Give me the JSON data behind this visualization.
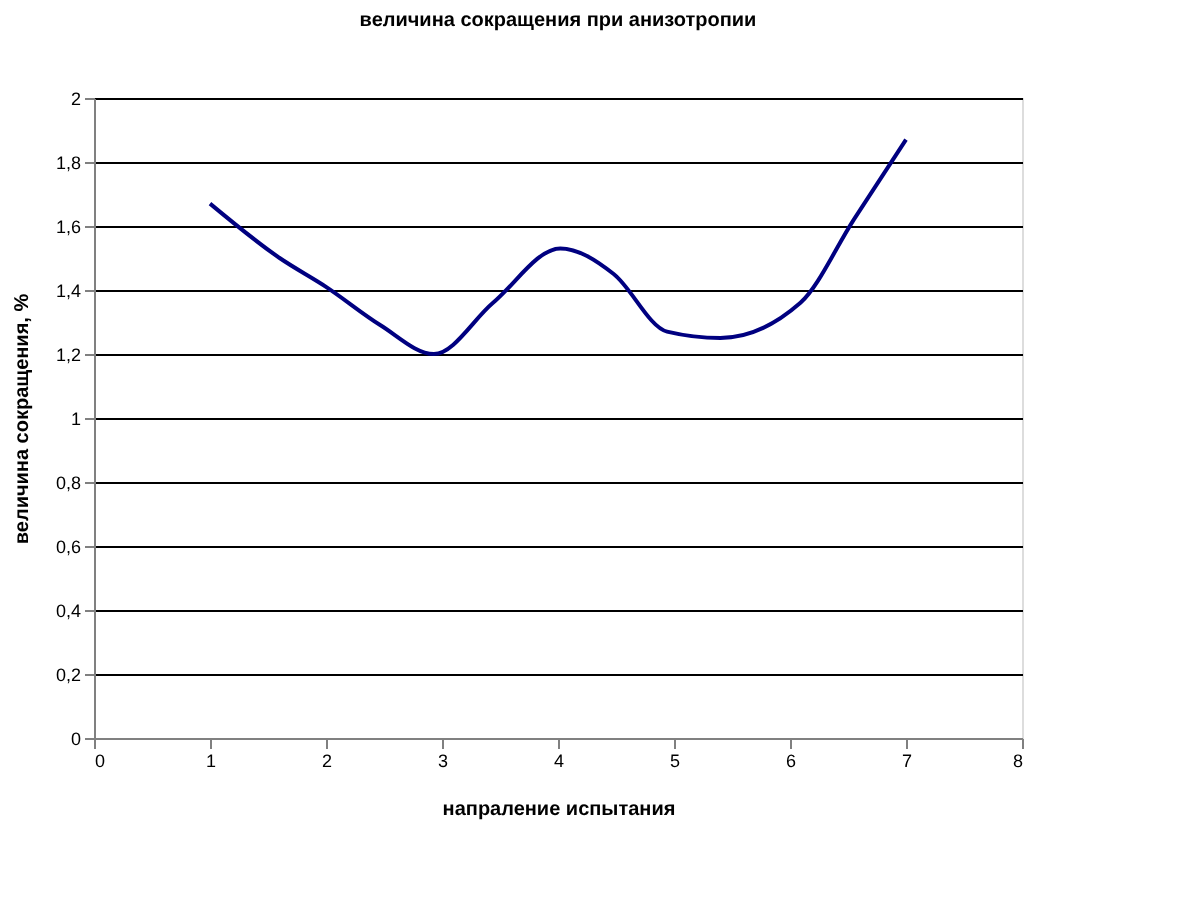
{
  "chart_data": {
    "type": "line",
    "title": "величина  сокращения при анизотропии",
    "xlabel": "напраление испытания",
    "ylabel": "величина сокращения, %",
    "series": [
      {
        "color": "#000080",
        "x": [
          1,
          1.6,
          2,
          2.47,
          2.93,
          3.44,
          4.02,
          4.48,
          4.94,
          5.4,
          6.09,
          6.55,
          7
        ],
        "values": [
          1.67,
          1.5,
          1.41,
          1.29,
          1.2,
          1.36,
          1.53,
          1.45,
          1.27,
          1.25,
          1.36,
          1.62,
          1.87
        ]
      }
    ],
    "xlim": [
      0,
      8
    ],
    "xticks": [
      0,
      1,
      2,
      3,
      4,
      5,
      6,
      7,
      8
    ],
    "ylim": [
      0,
      2
    ],
    "yticks": [
      0,
      {
        "value": 0.2,
        "label": "0,2"
      },
      {
        "value": 0.4,
        "label": "0,4"
      },
      {
        "value": 0.6,
        "label": "0,6"
      },
      {
        "value": 0.8,
        "label": "0,8"
      },
      1,
      {
        "value": 1.2,
        "label": "1,2"
      },
      {
        "value": 1.4,
        "label": "1,4"
      },
      {
        "value": 1.6,
        "label": "1,6"
      },
      {
        "value": 1.8,
        "label": "1,8"
      },
      2
    ],
    "grid": "y",
    "marker": "none",
    "line_style": "solid"
  }
}
